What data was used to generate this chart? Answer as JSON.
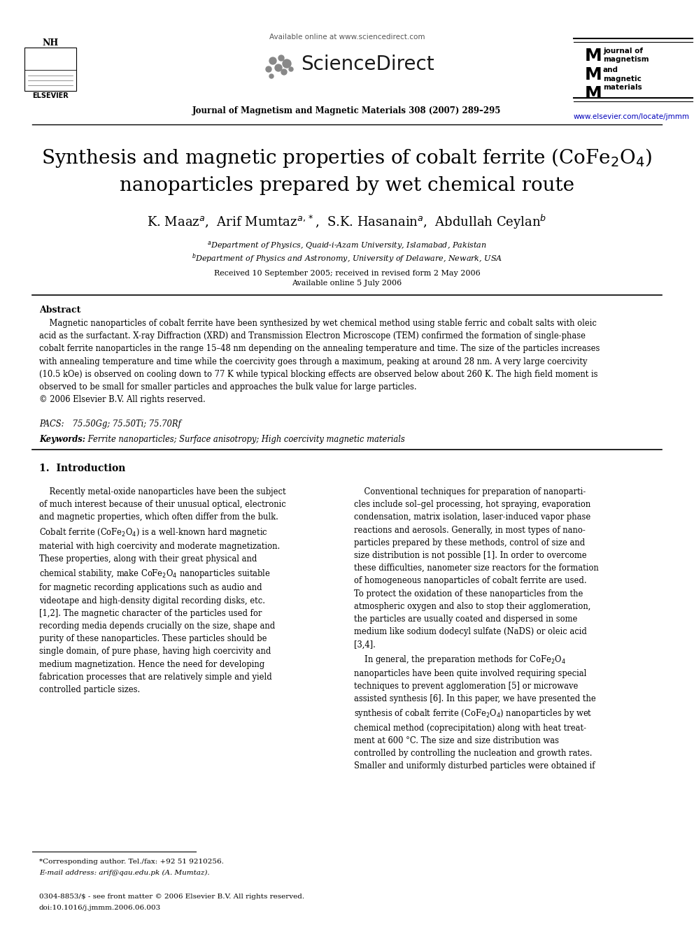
{
  "bg_color": "#ffffff",
  "text_color": "#000000",
  "header": {
    "available_online": "Available online at www.sciencedirect.com",
    "sciencedirect": "ScienceDirect",
    "journal_line": "Journal of Magnetism and Magnetic Materials 308 (2007) 289–295",
    "website": "www.elsevier.com/locate/jmmm"
  },
  "title_line1": "Synthesis and magnetic properties of cobalt ferrite (CoFe$_2$O$_4$)",
  "title_line2": "nanoparticles prepared by wet chemical route",
  "authors": "K. Maaz$^a$,  Arif Mumtaz$^{a,*}$,  S.K. Hasanain$^a$,  Abdullah Ceylan$^b$",
  "affil_a": "$^a$Department of Physics, Quaid-i-Azam University, Islamabad, Pakistan",
  "affil_b": "$^b$Department of Physics and Astronomy, University of Delaware, Newark, USA",
  "received": "Received 10 September 2005; received in revised form 2 May 2006",
  "available": "Available online 5 July 2006",
  "abstract_label": "Abstract",
  "abstract_body": "    Magnetic nanoparticles of cobalt ferrite have been synthesized by wet chemical method using stable ferric and cobalt salts with oleic\nacid as the surfactant. X-ray Diffraction (XRD) and Transmission Electron Microscope (TEM) confirmed the formation of single-phase\ncobalt ferrite nanoparticles in the range 15–48 nm depending on the annealing temperature and time. The size of the particles increases\nwith annealing temperature and time while the coercivity goes through a maximum, peaking at around 28 nm. A very large coercivity\n(10.5 kOe) is observed on cooling down to 77 K while typical blocking effects are observed below about 260 K. The high field moment is\nobserved to be small for smaller particles and approaches the bulk value for large particles.\n© 2006 Elsevier B.V. All rights reserved.",
  "pacs": "PACS:  75.50Gg; 75.50Ti; 75.70Rf",
  "keywords": "Keywords:  Ferrite nanoparticles; Surface anisotropy; High coercivity magnetic materials",
  "section1_label": "1.  Introduction",
  "intro_left": "    Recently metal-oxide nanoparticles have been the subject\nof much interest because of their unusual optical, electronic\nand magnetic properties, which often differ from the bulk.\nCobalt ferrite (CoFe$_2$O$_4$) is a well-known hard magnetic\nmaterial with high coercivity and moderate magnetization.\nThese properties, along with their great physical and\nchemical stability, make CoFe$_2$O$_4$ nanoparticles suitable\nfor magnetic recording applications such as audio and\nvideotape and high-density digital recording disks, etc.\n[1,2]. The magnetic character of the particles used for\nrecording media depends crucially on the size, shape and\npurity of these nanoparticles. These particles should be\nsingle domain, of pure phase, having high coercivity and\nmedium magnetization. Hence the need for developing\nfabrication processes that are relatively simple and yield\ncontrolled particle sizes.",
  "intro_right": "    Conventional techniques for preparation of nanoparti-\ncles include sol–gel processing, hot spraying, evaporation\ncondensation, matrix isolation, laser-induced vapor phase\nreactions and aerosols. Generally, in most types of nano-\nparticles prepared by these methods, control of size and\nsize distribution is not possible [1]. In order to overcome\nthese difficulties, nanometer size reactors for the formation\nof homogeneous nanoparticles of cobalt ferrite are used.\nTo protect the oxidation of these nanoparticles from the\natmospheric oxygen and also to stop their agglomeration,\nthe particles are usually coated and dispersed in some\nmedium like sodium dodecyl sulfate (NaDS) or oleic acid\n[3,4].\n    In general, the preparation methods for CoFe$_2$O$_4$\nnanoparticles have been quite involved requiring special\ntechniques to prevent agglomeration [5] or microwave\nassisted synthesis [6]. In this paper, we have presented the\nsynthesis of cobalt ferrite (CoFe$_2$O$_4$) nanoparticles by wet\nchemical method (coprecipitation) along with heat treat-\nment at 600 °C. The size and size distribution was\ncontrolled by controlling the nucleation and growth rates.\nSmaller and uniformly disturbed particles were obtained if",
  "footnote_corr": "*Corresponding author. Tel./fax: +92 51 9210256.",
  "footnote_email": "E-mail address: arif@qau.edu.pk (A. Mumtaz).",
  "footer_issn": "0304-8853/$ - see front matter © 2006 Elsevier B.V. All rights reserved.",
  "footer_doi": "doi:10.1016/j.jmmm.2006.06.003"
}
